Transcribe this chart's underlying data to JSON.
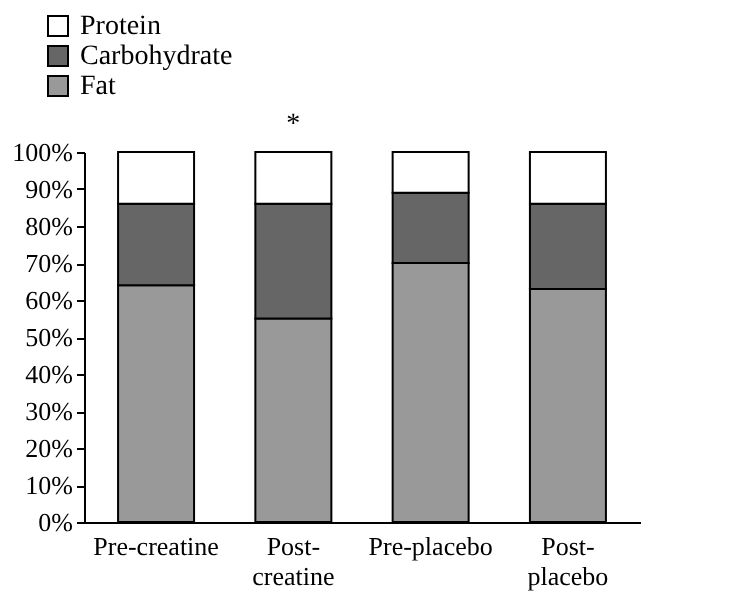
{
  "chart_data": {
    "type": "bar",
    "stacked": true,
    "categories": [
      "Pre-creatine",
      "Post-\ncreatine",
      "Pre-placebo",
      "Post-\nplacebo"
    ],
    "series": [
      {
        "name": "Fat",
        "color": "#999999",
        "values": [
          64,
          55,
          70,
          63
        ]
      },
      {
        "name": "Carbohydrate",
        "color": "#666666",
        "values": [
          22,
          31,
          19,
          23
        ]
      },
      {
        "name": "Protein",
        "color": "#ffffff",
        "values": [
          14,
          14,
          11,
          14
        ]
      }
    ],
    "ylim": [
      0,
      100
    ],
    "yticks": [
      {
        "value": 0,
        "label": "0%"
      },
      {
        "value": 10,
        "label": "10%"
      },
      {
        "value": 20,
        "label": "20%"
      },
      {
        "value": 30,
        "label": "30%"
      },
      {
        "value": 40,
        "label": "40%"
      },
      {
        "value": 50,
        "label": "50%"
      },
      {
        "value": 60,
        "label": "60%"
      },
      {
        "value": 70,
        "label": "70%"
      },
      {
        "value": 80,
        "label": "80%"
      },
      {
        "value": 90,
        "label": "90%"
      },
      {
        "value": 100,
        "label": "100%"
      }
    ],
    "annotations": [
      {
        "text": "*",
        "x": "Post-\ncreatine",
        "y": 100
      }
    ],
    "legend": "top left",
    "grid": false
  }
}
